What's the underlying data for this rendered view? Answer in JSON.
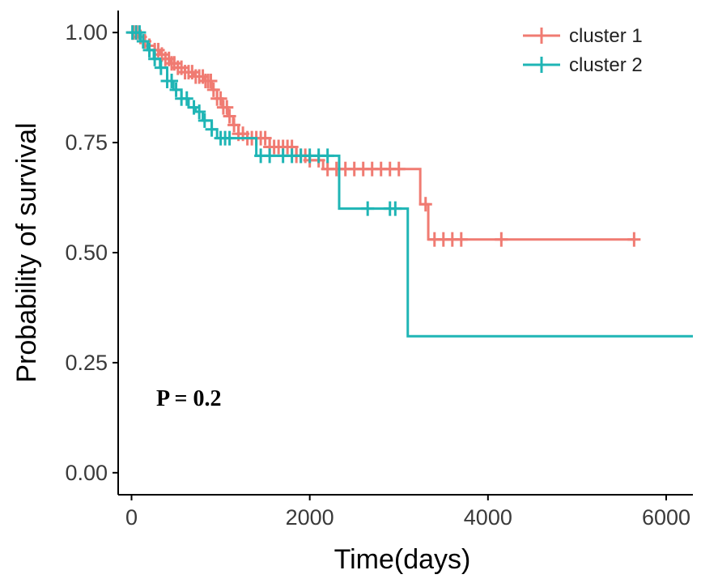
{
  "chart_data": {
    "type": "line",
    "title": "",
    "xlabel": "Time(days)",
    "ylabel": "Probability of survival",
    "xlim": [
      -150,
      6300
    ],
    "ylim": [
      -0.05,
      1.05
    ],
    "x_ticks": [
      0,
      2000,
      4000,
      6000
    ],
    "y_ticks": [
      0.0,
      0.25,
      0.5,
      0.75,
      1.0
    ],
    "x_tick_labels": [
      "0",
      "2000",
      "4000",
      "6000"
    ],
    "y_tick_labels": [
      "0.00",
      "0.25",
      "0.50",
      "0.75",
      "1.00"
    ],
    "grid": false,
    "legend_position": "top-right",
    "annotation": "P = 0.2",
    "series": [
      {
        "name": "cluster 1",
        "color": "#F07B72",
        "steps": [
          [
            0,
            1.0
          ],
          [
            80,
            0.99
          ],
          [
            140,
            0.98
          ],
          [
            200,
            0.97
          ],
          [
            260,
            0.96
          ],
          [
            320,
            0.95
          ],
          [
            380,
            0.94
          ],
          [
            440,
            0.93
          ],
          [
            520,
            0.92
          ],
          [
            600,
            0.91
          ],
          [
            700,
            0.9
          ],
          [
            820,
            0.89
          ],
          [
            900,
            0.87
          ],
          [
            960,
            0.85
          ],
          [
            1020,
            0.83
          ],
          [
            1080,
            0.81
          ],
          [
            1140,
            0.79
          ],
          [
            1200,
            0.77
          ],
          [
            1300,
            0.76
          ],
          [
            1550,
            0.74
          ],
          [
            1850,
            0.72
          ],
          [
            2000,
            0.71
          ],
          [
            2150,
            0.69
          ],
          [
            3240,
            0.61
          ],
          [
            3330,
            0.53
          ],
          [
            5640,
            0.53
          ]
        ],
        "censor_x": [
          20,
          60,
          100,
          150,
          200,
          260,
          300,
          340,
          380,
          420,
          450,
          480,
          520,
          560,
          600,
          640,
          680,
          720,
          760,
          800,
          830,
          860,
          890,
          920,
          960,
          1000,
          1030,
          1070,
          1100,
          1150,
          1200,
          1250,
          1300,
          1350,
          1400,
          1450,
          1500,
          1550,
          1600,
          1650,
          1700,
          1750,
          1800,
          1850,
          1900,
          1950,
          2000,
          2100,
          2200,
          2300,
          2400,
          2500,
          2600,
          2700,
          2800,
          2900,
          3000,
          3300,
          3400,
          3500,
          3600,
          3700,
          4150,
          5640
        ]
      },
      {
        "name": "cluster 2",
        "color": "#1FB5B5",
        "steps": [
          [
            0,
            1.0
          ],
          [
            100,
            0.98
          ],
          [
            180,
            0.96
          ],
          [
            250,
            0.94
          ],
          [
            320,
            0.92
          ],
          [
            400,
            0.89
          ],
          [
            470,
            0.87
          ],
          [
            560,
            0.85
          ],
          [
            640,
            0.83
          ],
          [
            720,
            0.82
          ],
          [
            800,
            0.8
          ],
          [
            900,
            0.78
          ],
          [
            960,
            0.76
          ],
          [
            1400,
            0.72
          ],
          [
            2330,
            0.6
          ],
          [
            3100,
            0.31
          ],
          [
            6300,
            0.31
          ]
        ],
        "censor_x": [
          10,
          50,
          90,
          130,
          200,
          260,
          330,
          400,
          450,
          500,
          560,
          620,
          700,
          760,
          820,
          900,
          1000,
          1050,
          1100,
          1450,
          1550,
          1700,
          1800,
          1900,
          2000,
          2100,
          2200,
          2650,
          2900,
          2960
        ]
      }
    ]
  }
}
